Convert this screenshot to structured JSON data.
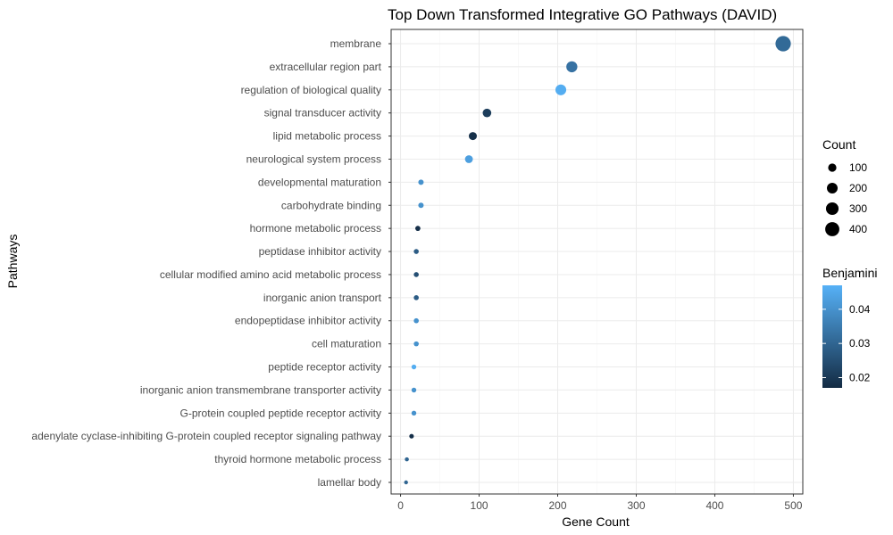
{
  "chart_data": {
    "type": "scatter",
    "title": "Top Down Transformed Integrative GO Pathways (DAVID)",
    "xlabel": "Gene Count",
    "ylabel": "Pathways",
    "xlim": [
      -12,
      512
    ],
    "x_ticks": [
      0,
      100,
      200,
      300,
      400,
      500
    ],
    "grid": true,
    "categories": [
      "membrane",
      "extracellular region part",
      "regulation of biological quality",
      "signal transducer activity",
      "lipid metabolic process",
      "neurological system process",
      "developmental maturation",
      "carbohydrate binding",
      "hormone metabolic process",
      "peptidase inhibitor activity",
      "cellular modified amino acid metabolic process",
      "inorganic anion transport",
      "endopeptidase inhibitor activity",
      "cell maturation",
      "peptide receptor activity",
      "inorganic anion transmembrane transporter activity",
      "G-protein coupled peptide receptor activity",
      "adenylate cyclase-inhibiting G-protein coupled receptor signaling pathway",
      "thyroid hormone metabolic process",
      "lamellar body"
    ],
    "count": [
      487,
      218,
      204,
      110,
      92,
      87,
      26,
      26,
      22,
      20,
      20,
      20,
      20,
      20,
      17,
      17,
      17,
      14,
      8,
      7
    ],
    "benjamini": [
      0.031,
      0.033,
      0.046,
      0.021,
      0.018,
      0.043,
      0.04,
      0.04,
      0.018,
      0.028,
      0.025,
      0.028,
      0.04,
      0.04,
      0.046,
      0.04,
      0.04,
      0.018,
      0.03,
      0.03
    ],
    "size_legend": {
      "title": "Count",
      "breaks": [
        100,
        200,
        300,
        400
      ],
      "labels": [
        "100",
        "200",
        "300",
        "400"
      ]
    },
    "color_legend": {
      "title": "Benjamini",
      "range": [
        0.017,
        0.047
      ],
      "breaks": [
        0.02,
        0.03,
        0.04
      ],
      "labels": [
        "0.02",
        "0.03",
        "0.04"
      ],
      "low_color": "#132b43",
      "high_color": "#56b1f7"
    },
    "colors": {
      "panel_border": "#333333",
      "grid_major": "#ebebeb",
      "grid_minor": "#f5f5f5"
    }
  }
}
